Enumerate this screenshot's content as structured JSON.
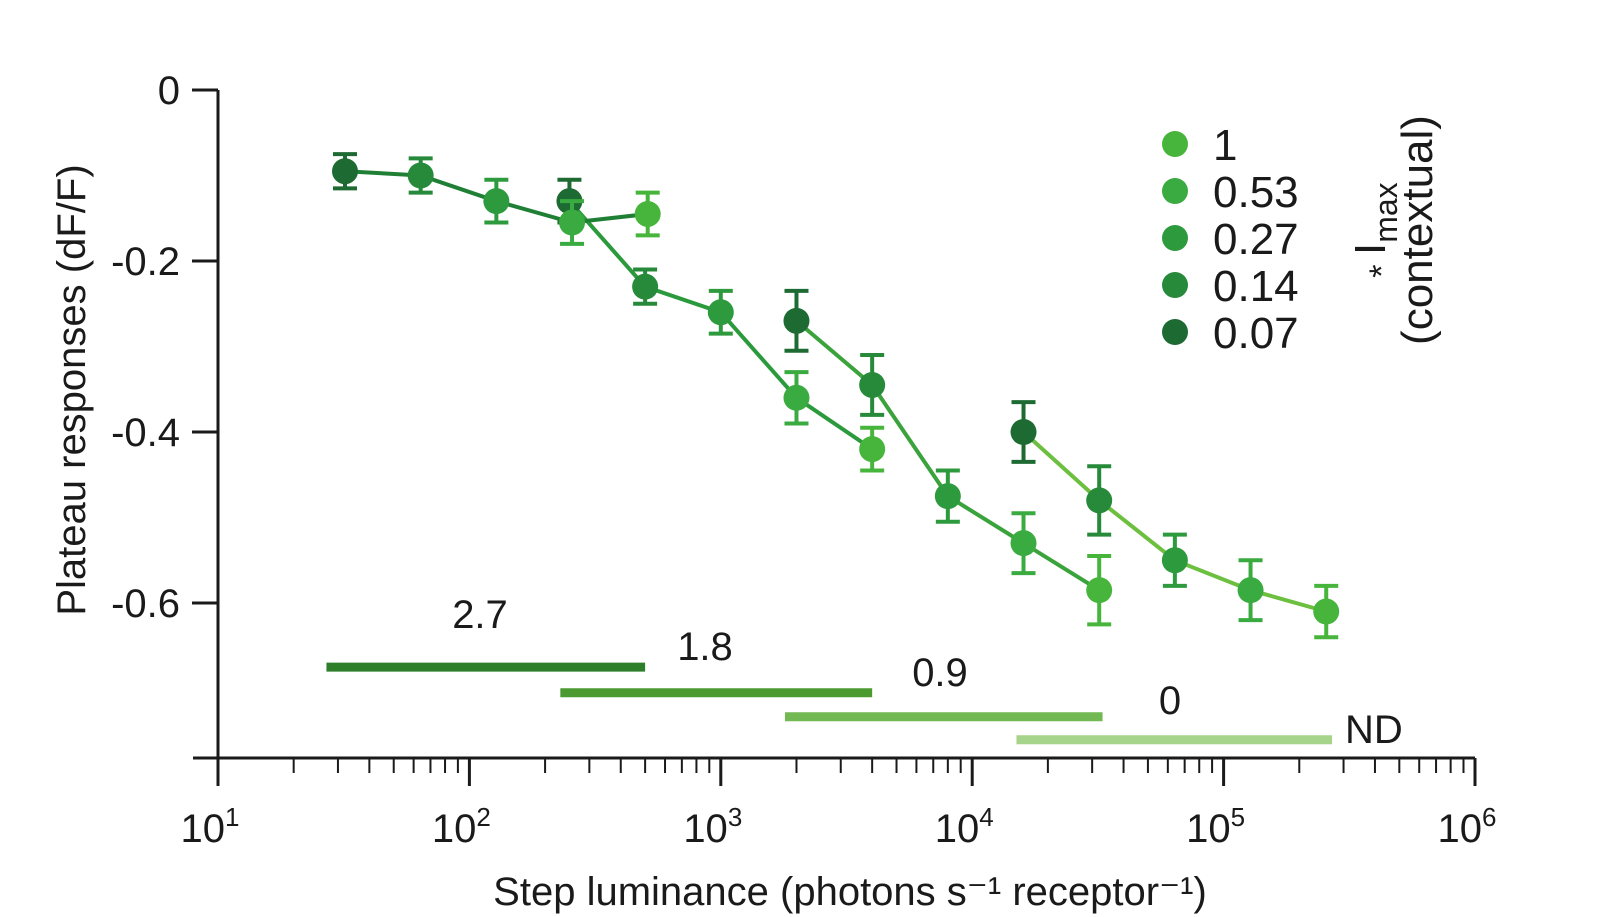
{
  "chart_data": {
    "type": "line",
    "xlabel": "Step luminance (photons s⁻¹ receptor⁻¹)",
    "ylabel": "Plateau responses (dF/F)",
    "x_scale": "log",
    "xlim": [
      10,
      1000000
    ],
    "ylim": [
      -0.78,
      0
    ],
    "x_ticks": [
      {
        "value": 10,
        "base": "10",
        "exp": "1"
      },
      {
        "value": 100,
        "base": "10",
        "exp": "2"
      },
      {
        "value": 1000,
        "base": "10",
        "exp": "3"
      },
      {
        "value": 10000,
        "base": "10",
        "exp": "4"
      },
      {
        "value": 100000,
        "base": "10",
        "exp": "5"
      },
      {
        "value": 1000000,
        "base": "10",
        "exp": "6"
      }
    ],
    "y_ticks": [
      {
        "value": 0,
        "label": "0"
      },
      {
        "value": -0.2,
        "label": "-0.2"
      },
      {
        "value": -0.4,
        "label": "-0.4"
      },
      {
        "value": -0.6,
        "label": "-0.6"
      }
    ],
    "grid": false,
    "legend": {
      "placement": "top-right",
      "title_star": "*",
      "title_main": "I",
      "title_sub": "max",
      "title_paren": "(contextual)"
    },
    "series": [
      {
        "name": "1",
        "color": "#6cbf3f",
        "points": [
          {
            "x": 16000,
            "y": -0.4,
            "err": 0.035,
            "color": "#1d6b32"
          },
          {
            "x": 32000,
            "y": -0.48,
            "err": 0.04,
            "color": "#268a3a"
          },
          {
            "x": 64000,
            "y": -0.55,
            "err": 0.03,
            "color": "#2e9a3e"
          },
          {
            "x": 128000,
            "y": -0.585,
            "err": 0.035,
            "color": "#3aab40"
          },
          {
            "x": 256000,
            "y": -0.61,
            "err": 0.03,
            "color": "#47b53b"
          }
        ]
      },
      {
        "name": "0.53",
        "color": "#3aa33c",
        "points": [
          {
            "x": 2000,
            "y": -0.27,
            "err": 0.035,
            "color": "#1d6b32"
          },
          {
            "x": 4000,
            "y": -0.345,
            "err": 0.035,
            "color": "#268a3a"
          },
          {
            "x": 8000,
            "y": -0.475,
            "err": 0.03,
            "color": "#2e9a3e"
          },
          {
            "x": 16000,
            "y": -0.53,
            "err": 0.035,
            "color": "#3aab40"
          },
          {
            "x": 32000,
            "y": -0.585,
            "err": 0.04,
            "color": "#47b53b"
          }
        ]
      },
      {
        "name": "0.27",
        "color": "#2a9a3c",
        "points": [
          {
            "x": 250,
            "y": -0.13,
            "err": 0.025,
            "color": "#1d6b32"
          },
          {
            "x": 500,
            "y": -0.23,
            "err": 0.02,
            "color": "#268a3a"
          },
          {
            "x": 1000,
            "y": -0.26,
            "err": 0.025,
            "color": "#2e9a3e"
          },
          {
            "x": 2000,
            "y": -0.36,
            "err": 0.03,
            "color": "#3aab40"
          },
          {
            "x": 4000,
            "y": -0.42,
            "err": 0.025,
            "color": "#47b53b"
          }
        ]
      },
      {
        "name": "0.14",
        "color": "#1f7f35",
        "points": [
          {
            "x": 32,
            "y": -0.095,
            "err": 0.02,
            "color": "#1d6b32"
          },
          {
            "x": 64,
            "y": -0.1,
            "err": 0.02,
            "color": "#268a3a"
          },
          {
            "x": 128,
            "y": -0.13,
            "err": 0.025,
            "color": "#2e9a3e"
          },
          {
            "x": 256,
            "y": -0.155,
            "err": 0.025,
            "color": "#3aab40"
          },
          {
            "x": 512,
            "y": -0.145,
            "err": 0.025,
            "color": "#47b53b"
          }
        ]
      },
      {
        "name": "0.07",
        "color": "#1d6b32",
        "points": []
      }
    ],
    "legend_colors": [
      "#47b53b",
      "#3aab40",
      "#2e9a3e",
      "#268a3a",
      "#1d6b32"
    ],
    "nd_bars": [
      {
        "label": "2.7",
        "x_start": 27,
        "x_end": 500,
        "y": -0.675,
        "color": "#2d7f2a"
      },
      {
        "label": "1.8",
        "x_start": 230,
        "x_end": 4000,
        "y": -0.705,
        "color": "#4a9a30"
      },
      {
        "label": "0.9",
        "x_start": 1800,
        "x_end": 33000,
        "y": -0.733,
        "color": "#72b853"
      },
      {
        "label": "0",
        "x_start": 15000,
        "x_end": 270000,
        "y": -0.76,
        "color": "#a6d48a"
      }
    ],
    "nd_label": "ND"
  }
}
